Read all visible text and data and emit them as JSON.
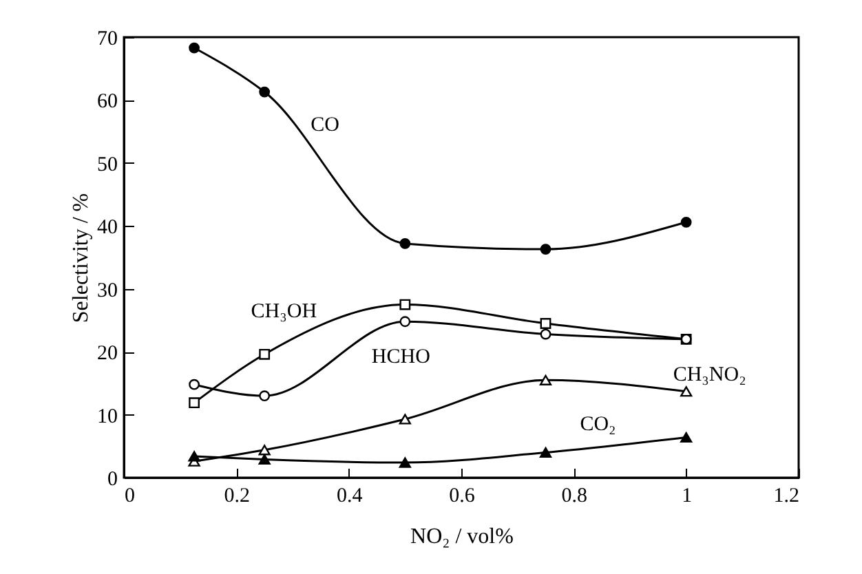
{
  "chart_data": {
    "type": "line",
    "xlabel": "NO₂ / vol%",
    "ylabel": "Selectivity / %",
    "x": [
      0.125,
      0.25,
      0.5,
      0.75,
      1
    ],
    "series": [
      {
        "name": "CO",
        "color": "#000000",
        "marker": "circle",
        "values": [
          68.3,
          61.3,
          37.2,
          36.3,
          40.6
        ]
      },
      {
        "name": "CH₃OH",
        "color": "#000000",
        "marker": "square",
        "values": [
          11.9,
          19.6,
          27.5,
          24.5,
          22.0
        ]
      },
      {
        "name": "HCHO",
        "color": "#000000",
        "marker": "circle",
        "values": [
          14.8,
          13.0,
          24.8,
          22.8,
          22.0
        ]
      },
      {
        "name": "CH₃NO₂",
        "color": "#000000",
        "marker": "triangle",
        "values": [
          2.6,
          4.4,
          9.3,
          15.5,
          13.7
        ]
      },
      {
        "name": "CO₂",
        "color": "#000000",
        "marker": "triangle",
        "values": [
          3.4,
          2.9,
          2.4,
          4.0,
          6.4
        ]
      }
    ],
    "xlim": [
      0,
      1.2
    ],
    "xticks": [
      0,
      0.2,
      0.4,
      0.6,
      0.8,
      1,
      1.2
    ],
    "ylim": [
      0,
      70
    ],
    "yticks": [
      0,
      10,
      20,
      30,
      40,
      50,
      60,
      70
    ],
    "line_style": "solid"
  }
}
